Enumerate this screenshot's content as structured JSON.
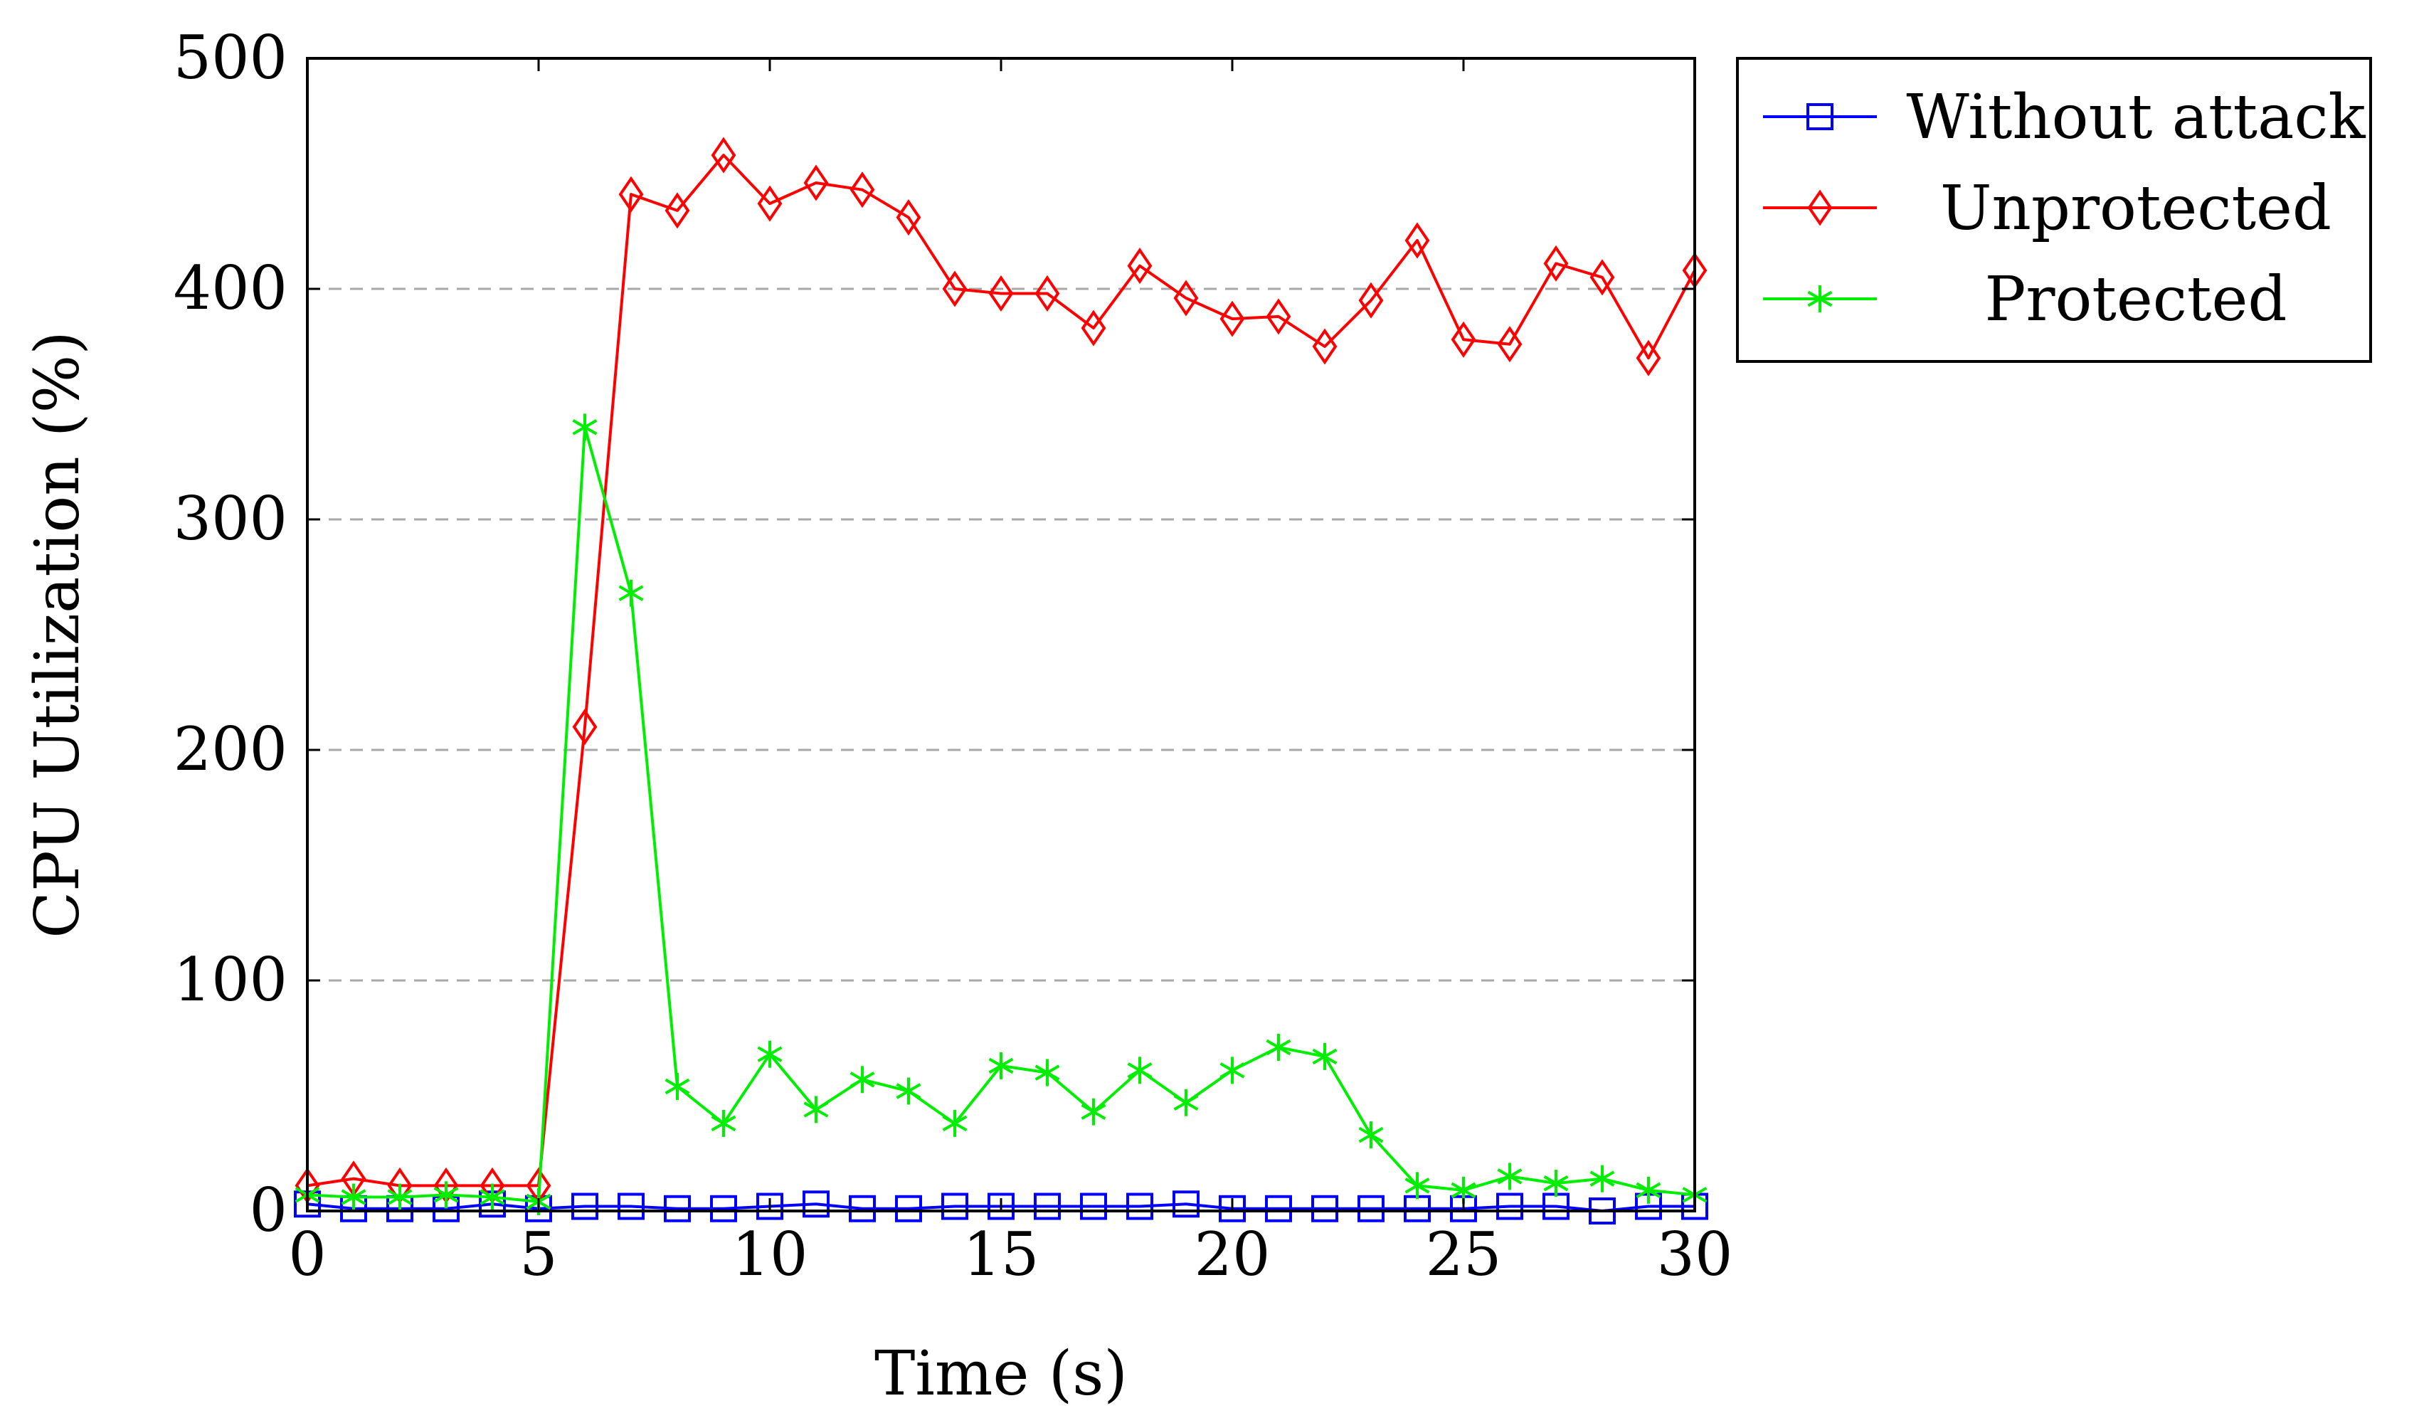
{
  "chart_data": {
    "type": "line",
    "xlabel": "Time (s)",
    "ylabel": "CPU Utilization (%)",
    "xlim": [
      0,
      30
    ],
    "ylim": [
      0,
      500
    ],
    "xticks": [
      "0",
      "5",
      "10",
      "15",
      "20",
      "25",
      "30"
    ],
    "yticks": [
      "0",
      "100",
      "200",
      "300",
      "400",
      "500"
    ],
    "grid": "horizontal-dashed",
    "legend_position": "outside-top-right",
    "x": [
      0,
      1,
      2,
      3,
      4,
      5,
      6,
      7,
      8,
      9,
      10,
      11,
      12,
      13,
      14,
      15,
      16,
      17,
      18,
      19,
      20,
      21,
      22,
      23,
      24,
      25,
      26,
      27,
      28,
      29,
      30
    ],
    "series": [
      {
        "name": "Without attack",
        "color": "#0000ff",
        "marker": "square",
        "values": [
          3,
          1,
          1,
          1,
          3,
          1,
          2,
          2,
          1,
          1,
          2,
          3,
          1,
          1,
          2,
          2,
          2,
          2,
          2,
          3,
          1,
          1,
          1,
          1,
          1,
          1,
          2,
          2,
          0,
          2,
          2
        ]
      },
      {
        "name": "Unprotected",
        "color": "#ff0000",
        "marker": "diamond",
        "values": [
          11,
          14,
          11,
          11,
          11,
          11,
          210,
          441,
          434,
          458,
          437,
          446,
          443,
          431,
          400,
          398,
          398,
          383,
          410,
          396,
          387,
          388,
          375,
          395,
          421,
          378,
          376,
          411,
          405,
          370,
          408
        ]
      },
      {
        "name": "Protected",
        "color": "#00ee00",
        "marker": "asterisk",
        "values": [
          7,
          6,
          6,
          7,
          6,
          4,
          340,
          268,
          54,
          38,
          68,
          44,
          57,
          52,
          38,
          63,
          60,
          43,
          61,
          47,
          61,
          71,
          67,
          33,
          11,
          9,
          15,
          12,
          14,
          9,
          7
        ]
      }
    ]
  }
}
